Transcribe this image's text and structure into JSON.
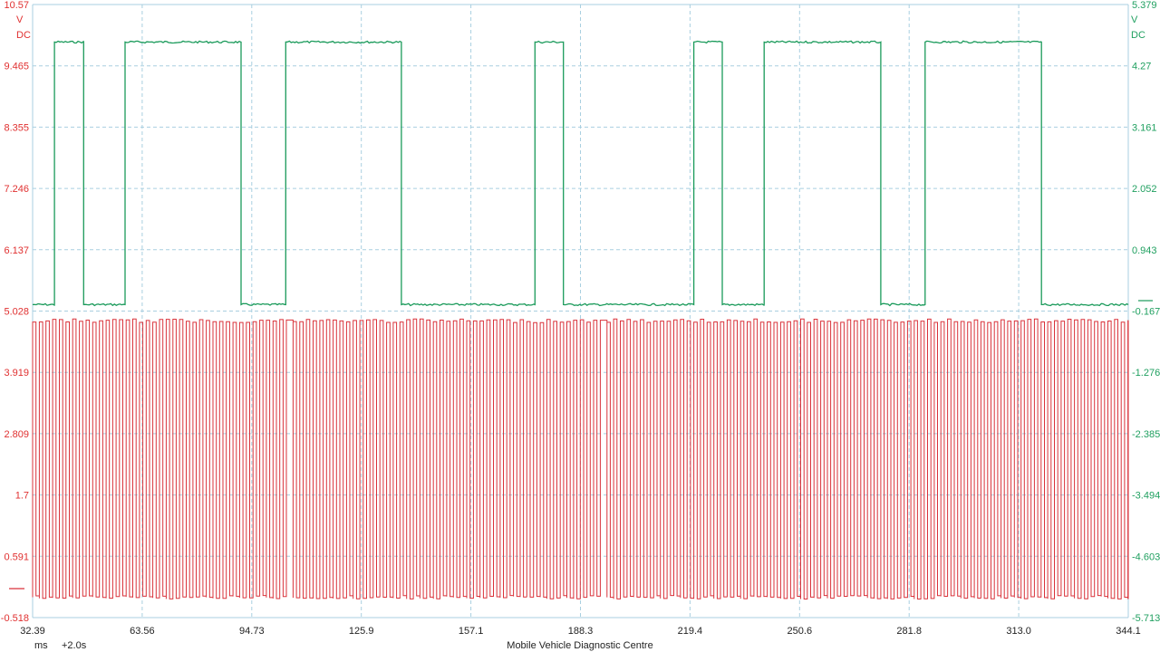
{
  "footer": {
    "units": "ms",
    "offset": "+2.0s",
    "credit": "Mobile Vehicle Diagnostic Centre"
  },
  "colors": {
    "ch1": "#d9323a",
    "ch2": "#1a9a5a",
    "grid": "#a9cfe0",
    "ch1_label": "#e03030",
    "ch2_label": "#20a060"
  },
  "chart_data": {
    "type": "line",
    "title": "",
    "xlabel": "ms",
    "x_offset": "+2.0s",
    "xlim": [
      32.39,
      344.1
    ],
    "x_ticks": [
      "32.39",
      "63.56",
      "94.73",
      "125.9",
      "157.1",
      "188.3",
      "219.4",
      "250.6",
      "281.8",
      "313.0",
      "344.1"
    ],
    "axes": {
      "left": {
        "unit": "V",
        "coupling": "DC",
        "ylim": [
          -0.518,
          10.57
        ],
        "ticks": [
          "10.57",
          "9.465",
          "8.355",
          "7.246",
          "6.137",
          "5.028",
          "3.919",
          "2.809",
          "1.7",
          "0.591",
          "-0.518"
        ]
      },
      "right": {
        "unit": "V",
        "coupling": "DC",
        "ylim": [
          -5.713,
          5.379
        ],
        "ticks": [
          "5.379",
          "4.27",
          "3.161",
          "2.052",
          "0.943",
          "-0.167",
          "-1.276",
          "-2.385",
          "-3.494",
          "-4.603",
          "-5.713"
        ]
      }
    },
    "grid": true,
    "series": [
      {
        "axis": "right",
        "color": "#1a9a5a",
        "low": -0.05,
        "high": 4.7,
        "transitions_ms": [
          [
            32.39,
            "low"
          ],
          [
            38.6,
            "high"
          ],
          [
            46.9,
            "low"
          ],
          [
            58.7,
            "high"
          ],
          [
            91.7,
            "low"
          ],
          [
            104.4,
            "high"
          ],
          [
            137.3,
            "low"
          ],
          [
            175.3,
            "high"
          ],
          [
            183.4,
            "low"
          ],
          [
            220.5,
            "high"
          ],
          [
            228.6,
            "low"
          ],
          [
            240.5,
            "high"
          ],
          [
            273.7,
            "low"
          ],
          [
            286.3,
            "high"
          ],
          [
            319.4,
            "low"
          ],
          [
            344.1,
            "low"
          ]
        ]
      },
      {
        "axis": "left",
        "color": "#d9323a",
        "low": -0.15,
        "high": 4.85,
        "period_ms": 1.9,
        "gaps_ms": [
          [
            103.0,
            105.0
          ],
          [
            193.4,
            195.4
          ],
          [
            289.0,
            290.6
          ]
        ]
      }
    ]
  }
}
